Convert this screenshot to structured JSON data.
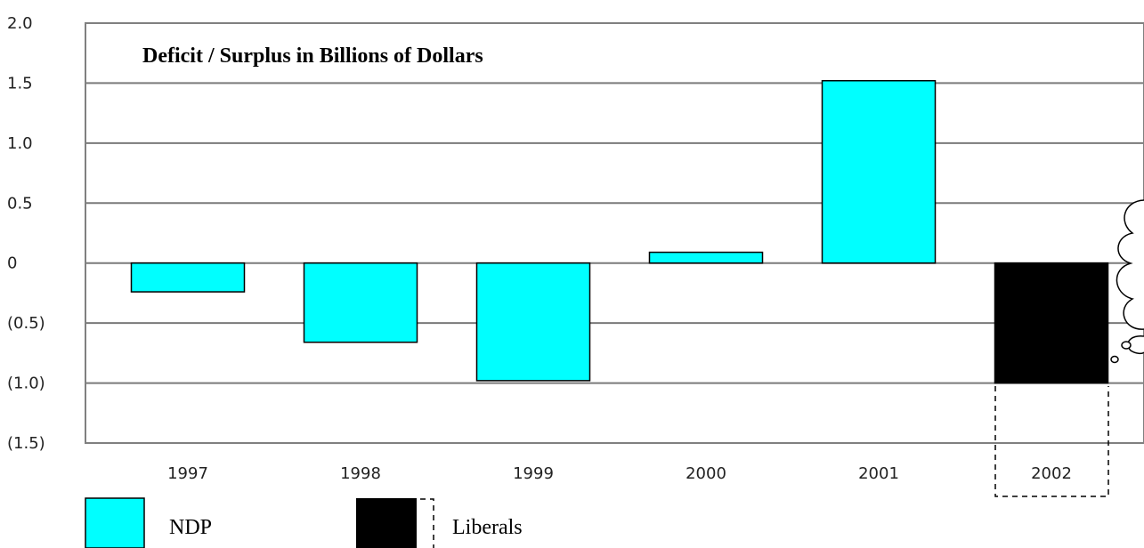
{
  "chart_data": {
    "type": "bar",
    "title": "Deficit / Surplus in Billions of Dollars",
    "xlabel": "",
    "ylabel": "",
    "ylim": [
      -1.5,
      2.0
    ],
    "yticks": [
      2.0,
      1.5,
      1.0,
      0.5,
      0,
      -0.5,
      -1.0,
      -1.5
    ],
    "ytick_labels": [
      "2.0",
      "1.5",
      "1.0",
      "0.5",
      "0",
      "(0.5)",
      "(1.0)",
      "(1.5)"
    ],
    "categories": [
      "1997",
      "1998",
      "1999",
      "2000",
      "2001",
      "2002"
    ],
    "values": [
      -0.24,
      -0.66,
      -0.98,
      0.09,
      1.52,
      -1.0
    ],
    "bar_party": [
      "NDP",
      "NDP",
      "NDP",
      "NDP",
      "NDP",
      "Liberals"
    ],
    "grid": true,
    "legend": [
      {
        "label": "NDP",
        "color": "#00FFFF"
      },
      {
        "label": "Liberals",
        "color": "#000000"
      }
    ],
    "colors": {
      "NDP": "#00FFFF",
      "Liberals": "#000000"
    }
  }
}
